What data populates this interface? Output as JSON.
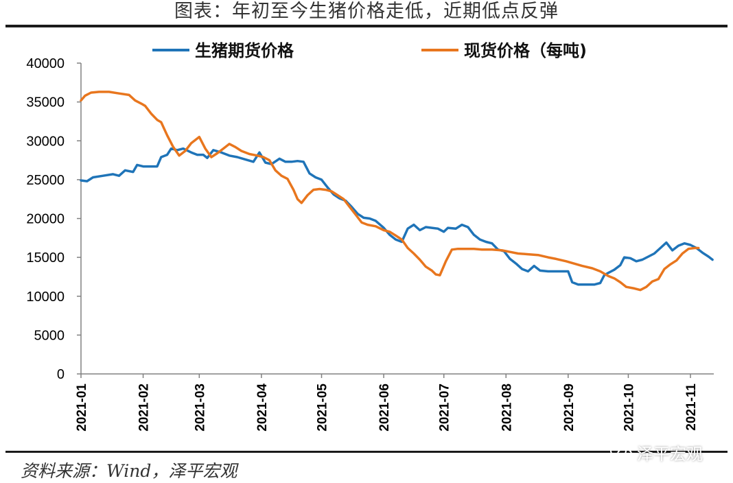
{
  "page": {
    "title": "图表：年初至今生猪价格走低，近期低点反弹",
    "source": "资料来源：Wind，泽平宏观",
    "watermark": "泽平宏观"
  },
  "chart_data": {
    "type": "line",
    "title": "图表：年初至今生猪价格走低，近期低点反弹",
    "xlabel": "",
    "ylabel": "",
    "ylim": [
      0,
      40000
    ],
    "yticks": [
      0,
      5000,
      10000,
      15000,
      20000,
      25000,
      30000,
      35000,
      40000
    ],
    "xlim": [
      "2021-01-01",
      "2021-11-12"
    ],
    "xticks": [
      "2021-01",
      "2021-02",
      "2021-03",
      "2021-04",
      "2021-05",
      "2021-06",
      "2021-07",
      "2021-08",
      "2021-09",
      "2021-10",
      "2021-11"
    ],
    "grid": false,
    "legend": "top",
    "series": [
      {
        "name": "生猪期货价格",
        "color": "#1f74b8",
        "points": [
          [
            "2021-01-01",
            24900
          ],
          [
            "2021-01-04",
            24800
          ],
          [
            "2021-01-07",
            25300
          ],
          [
            "2021-01-12",
            25500
          ],
          [
            "2021-01-17",
            25700
          ],
          [
            "2021-01-20",
            25500
          ],
          [
            "2021-01-23",
            26200
          ],
          [
            "2021-01-27",
            26000
          ],
          [
            "2021-01-29",
            26900
          ],
          [
            "2021-02-01",
            26700
          ],
          [
            "2021-02-05",
            26700
          ],
          [
            "2021-02-08",
            26700
          ],
          [
            "2021-02-10",
            27900
          ],
          [
            "2021-02-13",
            28200
          ],
          [
            "2021-02-15",
            29000
          ],
          [
            "2021-02-18",
            28800
          ],
          [
            "2021-02-21",
            29000
          ],
          [
            "2021-02-25",
            28500
          ],
          [
            "2021-02-28",
            28200
          ],
          [
            "2021-03-03",
            28200
          ],
          [
            "2021-03-05",
            27800
          ],
          [
            "2021-03-08",
            28800
          ],
          [
            "2021-03-12",
            28500
          ],
          [
            "2021-03-16",
            28100
          ],
          [
            "2021-03-20",
            27900
          ],
          [
            "2021-03-24",
            27600
          ],
          [
            "2021-03-28",
            27300
          ],
          [
            "2021-03-31",
            28500
          ],
          [
            "2021-04-03",
            27200
          ],
          [
            "2021-04-06",
            27000
          ],
          [
            "2021-04-10",
            27700
          ],
          [
            "2021-04-13",
            27300
          ],
          [
            "2021-04-16",
            27300
          ],
          [
            "2021-04-19",
            27400
          ],
          [
            "2021-04-22",
            27300
          ],
          [
            "2021-04-25",
            25800
          ],
          [
            "2021-04-28",
            25300
          ],
          [
            "2021-05-01",
            25000
          ],
          [
            "2021-05-04",
            24000
          ],
          [
            "2021-05-07",
            23100
          ],
          [
            "2021-05-10",
            22600
          ],
          [
            "2021-05-13",
            22300
          ],
          [
            "2021-05-16",
            21500
          ],
          [
            "2021-05-19",
            20600
          ],
          [
            "2021-05-22",
            20100
          ],
          [
            "2021-05-25",
            20000
          ],
          [
            "2021-05-28",
            19700
          ],
          [
            "2021-06-01",
            18800
          ],
          [
            "2021-06-04",
            17900
          ],
          [
            "2021-06-07",
            17300
          ],
          [
            "2021-06-10",
            17000
          ],
          [
            "2021-06-13",
            18700
          ],
          [
            "2021-06-16",
            19200
          ],
          [
            "2021-06-19",
            18500
          ],
          [
            "2021-06-22",
            18900
          ],
          [
            "2021-06-25",
            18800
          ],
          [
            "2021-06-28",
            18700
          ],
          [
            "2021-07-01",
            18300
          ],
          [
            "2021-07-03",
            18800
          ],
          [
            "2021-07-07",
            18700
          ],
          [
            "2021-07-10",
            19200
          ],
          [
            "2021-07-13",
            18900
          ],
          [
            "2021-07-16",
            17900
          ],
          [
            "2021-07-19",
            17300
          ],
          [
            "2021-07-22",
            17000
          ],
          [
            "2021-07-25",
            16800
          ],
          [
            "2021-07-28",
            16000
          ],
          [
            "2021-07-31",
            15800
          ],
          [
            "2021-08-03",
            14800
          ],
          [
            "2021-08-06",
            14200
          ],
          [
            "2021-08-09",
            13500
          ],
          [
            "2021-08-12",
            13200
          ],
          [
            "2021-08-15",
            13900
          ],
          [
            "2021-08-18",
            13300
          ],
          [
            "2021-08-22",
            13200
          ],
          [
            "2021-08-26",
            13200
          ],
          [
            "2021-08-30",
            13200
          ],
          [
            "2021-09-01",
            13200
          ],
          [
            "2021-09-03",
            11800
          ],
          [
            "2021-09-06",
            11500
          ],
          [
            "2021-09-10",
            11500
          ],
          [
            "2021-09-14",
            11500
          ],
          [
            "2021-09-17",
            11700
          ],
          [
            "2021-09-19",
            12700
          ],
          [
            "2021-09-21",
            13000
          ],
          [
            "2021-09-24",
            13400
          ],
          [
            "2021-09-27",
            14000
          ],
          [
            "2021-09-29",
            15000
          ],
          [
            "2021-10-02",
            14900
          ],
          [
            "2021-10-05",
            14500
          ],
          [
            "2021-10-08",
            14700
          ],
          [
            "2021-10-11",
            15100
          ],
          [
            "2021-10-14",
            15500
          ],
          [
            "2021-10-17",
            16200
          ],
          [
            "2021-10-20",
            16900
          ],
          [
            "2021-10-23",
            15900
          ],
          [
            "2021-10-26",
            16500
          ],
          [
            "2021-10-29",
            16800
          ],
          [
            "2021-11-01",
            16600
          ],
          [
            "2021-11-04",
            16200
          ],
          [
            "2021-11-07",
            15600
          ],
          [
            "2021-11-10",
            15100
          ],
          [
            "2021-11-12",
            14700
          ]
        ]
      },
      {
        "name": "现货价格（每吨)",
        "color": "#e8761e",
        "points": [
          [
            "2021-01-01",
            35200
          ],
          [
            "2021-01-03",
            35800
          ],
          [
            "2021-01-06",
            36200
          ],
          [
            "2021-01-10",
            36300
          ],
          [
            "2021-01-15",
            36300
          ],
          [
            "2021-01-20",
            36100
          ],
          [
            "2021-01-25",
            35900
          ],
          [
            "2021-01-28",
            35200
          ],
          [
            "2021-01-31",
            34800
          ],
          [
            "2021-02-02",
            34500
          ],
          [
            "2021-02-05",
            33500
          ],
          [
            "2021-02-08",
            32700
          ],
          [
            "2021-02-10",
            32400
          ],
          [
            "2021-02-13",
            30700
          ],
          [
            "2021-02-16",
            29200
          ],
          [
            "2021-02-19",
            28100
          ],
          [
            "2021-02-22",
            28700
          ],
          [
            "2021-02-25",
            29700
          ],
          [
            "2021-02-28",
            30300
          ],
          [
            "2021-03-01",
            30500
          ],
          [
            "2021-03-04",
            29000
          ],
          [
            "2021-03-07",
            27900
          ],
          [
            "2021-03-10",
            28400
          ],
          [
            "2021-03-13",
            29000
          ],
          [
            "2021-03-16",
            29600
          ],
          [
            "2021-03-19",
            29200
          ],
          [
            "2021-03-22",
            28700
          ],
          [
            "2021-03-26",
            28300
          ],
          [
            "2021-03-30",
            28100
          ],
          [
            "2021-04-02",
            27900
          ],
          [
            "2021-04-05",
            27500
          ],
          [
            "2021-04-08",
            26200
          ],
          [
            "2021-04-11",
            25500
          ],
          [
            "2021-04-14",
            25100
          ],
          [
            "2021-04-17",
            23700
          ],
          [
            "2021-04-19",
            22500
          ],
          [
            "2021-04-21",
            22000
          ],
          [
            "2021-04-24",
            23000
          ],
          [
            "2021-04-27",
            23700
          ],
          [
            "2021-04-30",
            23800
          ],
          [
            "2021-05-03",
            23700
          ],
          [
            "2021-05-06",
            23500
          ],
          [
            "2021-05-09",
            23000
          ],
          [
            "2021-05-12",
            22500
          ],
          [
            "2021-05-15",
            21500
          ],
          [
            "2021-05-18",
            20500
          ],
          [
            "2021-05-21",
            19500
          ],
          [
            "2021-05-24",
            19200
          ],
          [
            "2021-05-28",
            19000
          ],
          [
            "2021-06-01",
            18500
          ],
          [
            "2021-06-04",
            18300
          ],
          [
            "2021-06-07",
            17800
          ],
          [
            "2021-06-10",
            17300
          ],
          [
            "2021-06-13",
            16200
          ],
          [
            "2021-06-16",
            15500
          ],
          [
            "2021-06-19",
            14700
          ],
          [
            "2021-06-22",
            13800
          ],
          [
            "2021-06-25",
            13300
          ],
          [
            "2021-06-27",
            12800
          ],
          [
            "2021-06-29",
            12700
          ],
          [
            "2021-07-02",
            14500
          ],
          [
            "2021-07-05",
            16000
          ],
          [
            "2021-07-08",
            16100
          ],
          [
            "2021-07-12",
            16100
          ],
          [
            "2021-07-16",
            16100
          ],
          [
            "2021-07-20",
            16000
          ],
          [
            "2021-07-25",
            16000
          ],
          [
            "2021-07-30",
            15900
          ],
          [
            "2021-08-03",
            15700
          ],
          [
            "2021-08-07",
            15500
          ],
          [
            "2021-08-12",
            15400
          ],
          [
            "2021-08-17",
            15300
          ],
          [
            "2021-08-22",
            15000
          ],
          [
            "2021-08-26",
            14800
          ],
          [
            "2021-08-31",
            14500
          ],
          [
            "2021-09-04",
            14200
          ],
          [
            "2021-09-08",
            13900
          ],
          [
            "2021-09-13",
            13600
          ],
          [
            "2021-09-17",
            13200
          ],
          [
            "2021-09-21",
            12600
          ],
          [
            "2021-09-24",
            12300
          ],
          [
            "2021-09-27",
            11800
          ],
          [
            "2021-09-30",
            11200
          ],
          [
            "2021-10-04",
            11000
          ],
          [
            "2021-10-07",
            10800
          ],
          [
            "2021-10-10",
            11200
          ],
          [
            "2021-10-13",
            11900
          ],
          [
            "2021-10-16",
            12200
          ],
          [
            "2021-10-19",
            13500
          ],
          [
            "2021-10-22",
            14100
          ],
          [
            "2021-10-25",
            14600
          ],
          [
            "2021-10-28",
            15500
          ],
          [
            "2021-10-31",
            16100
          ],
          [
            "2021-11-03",
            16200
          ],
          [
            "2021-11-05",
            16200
          ]
        ]
      }
    ]
  }
}
